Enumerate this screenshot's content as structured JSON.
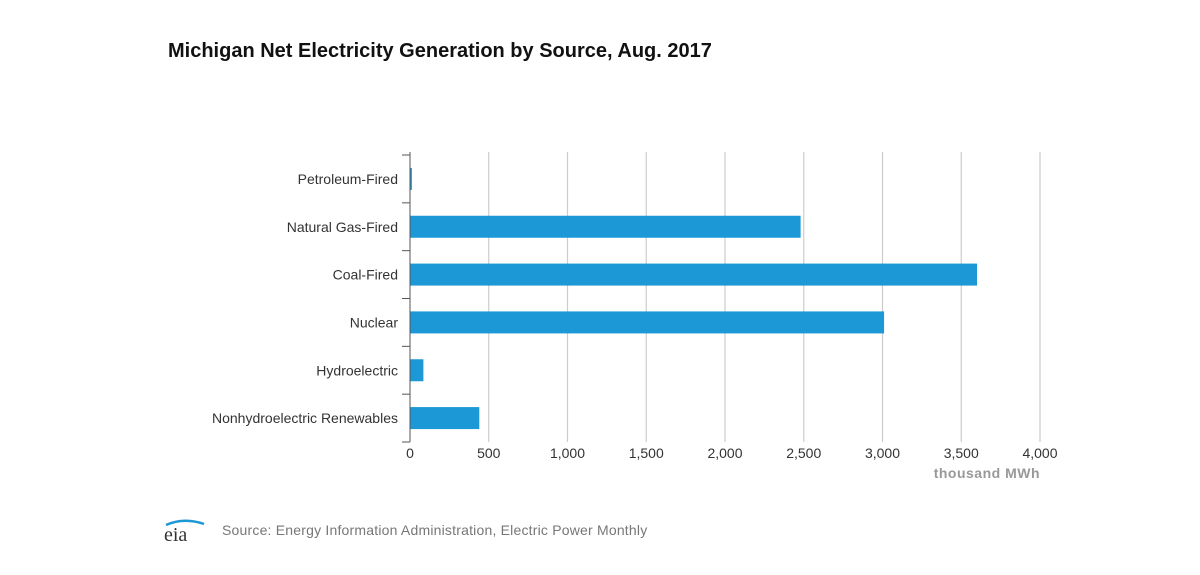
{
  "chart_data": {
    "type": "bar",
    "orientation": "horizontal",
    "title": "Michigan Net Electricity Generation by Source, Aug. 2017",
    "xlabel": "thousand MWh",
    "ylabel": "",
    "categories": [
      "Petroleum-Fired",
      "Natural Gas-Fired",
      "Coal-Fired",
      "Nuclear",
      "Hydroelectric",
      "Nonhydroelectric Renewables"
    ],
    "values": [
      12,
      2480,
      3600,
      3010,
      85,
      440
    ],
    "xlim": [
      0,
      4000
    ],
    "xticks": [
      0,
      500,
      1000,
      1500,
      2000,
      2500,
      3000,
      3500,
      4000
    ],
    "xtick_labels": [
      "0",
      "500",
      "1,000",
      "1,500",
      "2,000",
      "2,500",
      "3,000",
      "3,500",
      "4,000"
    ],
    "grid": "vertical",
    "legend": "none",
    "bar_color": "#1b98d5"
  },
  "footer": {
    "logo_text": "eia",
    "source": "Source: Energy Information Administration, Electric Power Monthly"
  }
}
